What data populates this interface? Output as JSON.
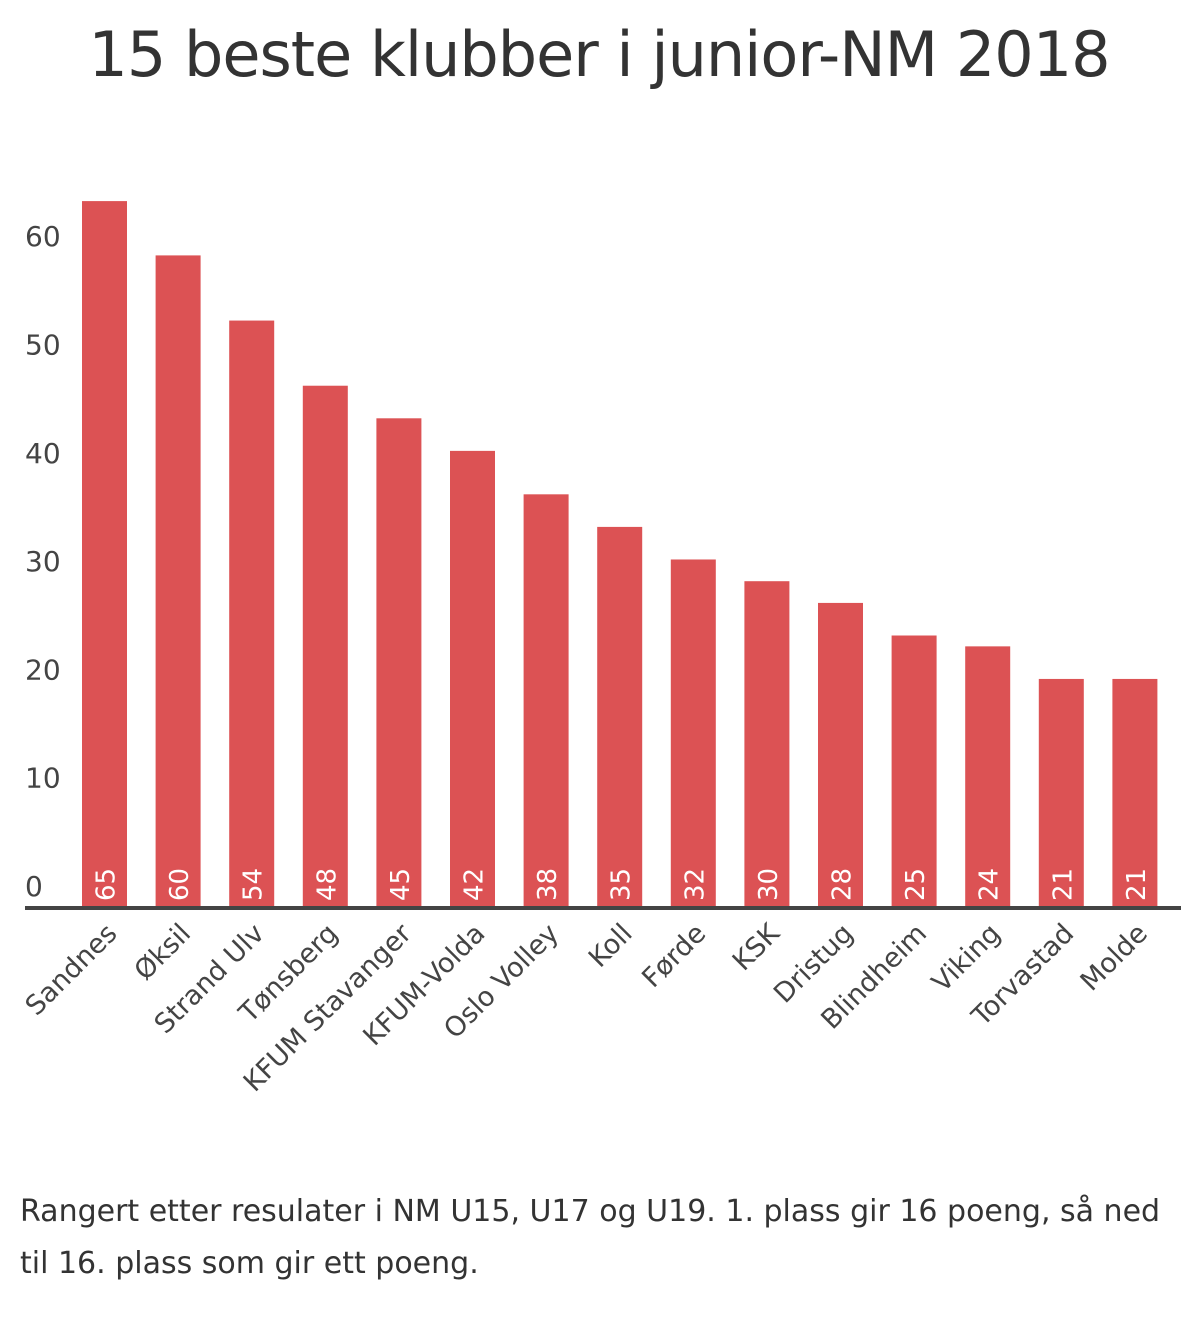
{
  "chart_data": {
    "type": "bar",
    "title": "15 beste klubber i junior-NM 2018",
    "categories": [
      "Sandnes",
      "Øksil",
      "Strand Ulv",
      "Tønsberg",
      "KFUM Stavanger",
      "KFUM-Volda",
      "Oslo Volley",
      "Koll",
      "Førde",
      "KSK",
      "Dristug",
      "Blindheim",
      "Viking",
      "Torvastad",
      "Molde"
    ],
    "values": [
      65,
      60,
      54,
      48,
      45,
      42,
      38,
      35,
      32,
      30,
      28,
      25,
      24,
      21,
      21
    ],
    "yticks": [
      0,
      10,
      20,
      30,
      40,
      50,
      60
    ],
    "ylim": [
      0,
      65
    ],
    "xlabel": "",
    "ylabel": "",
    "bar_color": "#dc5254",
    "grid": false,
    "legend": "none"
  },
  "note": "Rangert etter resulater i NM U15, U17 og U19. 1. plass gir 16 poeng, så ned til 16. plass som gir ett poeng."
}
